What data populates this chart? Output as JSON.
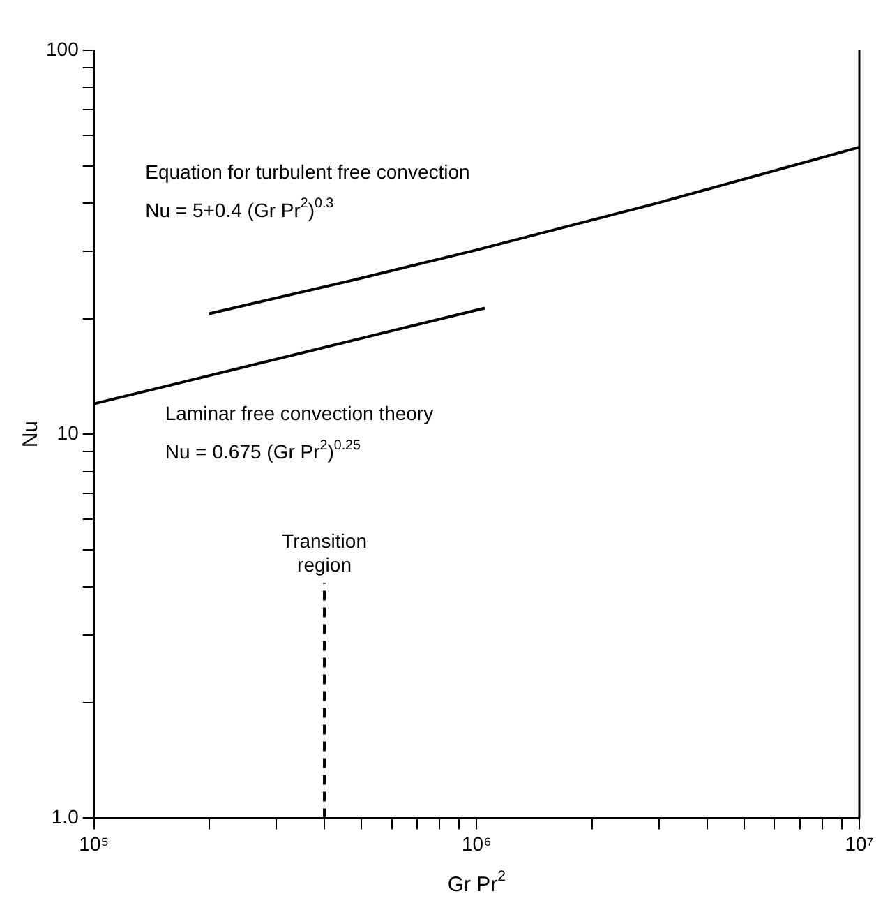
{
  "chart_data": {
    "type": "line",
    "xlabel": "Gr Pr$^{2}$",
    "ylabel": "Nu",
    "log": "xy",
    "marker": "none",
    "xlim": [
      100000,
      10000000
    ],
    "ylim": [
      1,
      100
    ],
    "xticks": [
      {
        "value": 100000,
        "label": "10⁵"
      },
      {
        "value": 200000,
        "label": null
      },
      {
        "value": 300000,
        "label": null
      },
      {
        "value": 400000,
        "label": null
      },
      {
        "value": 500000,
        "label": null
      },
      {
        "value": 600000,
        "label": null
      },
      {
        "value": 700000,
        "label": null
      },
      {
        "value": 800000,
        "label": null
      },
      {
        "value": 900000,
        "label": null
      },
      {
        "value": 1000000,
        "label": "10⁶"
      },
      {
        "value": 2000000,
        "label": null
      },
      {
        "value": 3000000,
        "label": null
      },
      {
        "value": 4000000,
        "label": null
      },
      {
        "value": 5000000,
        "label": null
      },
      {
        "value": 6000000,
        "label": null
      },
      {
        "value": 7000000,
        "label": null
      },
      {
        "value": 8000000,
        "label": null
      },
      {
        "value": 9000000,
        "label": null
      },
      {
        "value": 10000000,
        "label": "10⁷"
      }
    ],
    "yticks": [
      {
        "value": 1,
        "label": "1.0"
      },
      {
        "value": 2,
        "label": null
      },
      {
        "value": 3,
        "label": null
      },
      {
        "value": 4,
        "label": null
      },
      {
        "value": 5,
        "label": null
      },
      {
        "value": 6,
        "label": null
      },
      {
        "value": 7,
        "label": null
      },
      {
        "value": 8,
        "label": null
      },
      {
        "value": 9,
        "label": null
      },
      10,
      {
        "value": 20,
        "label": null
      },
      {
        "value": 30,
        "label": null
      },
      {
        "value": 40,
        "label": null
      },
      {
        "value": 50,
        "label": null
      },
      {
        "value": 60,
        "label": null
      },
      {
        "value": 70,
        "label": null
      },
      {
        "value": 80,
        "label": null
      },
      {
        "value": 90,
        "label": null
      },
      100
    ],
    "series": [
      {
        "color": "#000000",
        "x": [
          200000,
          500000,
          1000000,
          3000000,
          10000000
        ],
        "values": [
          20.6,
          25.5,
          30.2,
          40.1,
          55.9
        ]
      },
      {
        "color": "#000000",
        "x": [
          100000,
          1050000
        ],
        "values": [
          12,
          21.3
        ]
      },
      {
        "color": "#000000",
        "line_style": "dashed",
        "x": [
          400000,
          400000
        ],
        "values": [
          1,
          4.1
        ]
      }
    ],
    "annotations": [
      "Equation for turbulent free convection",
      "Nu = 5+0.4 (Gr Pr$^{2}$)$^{0.3}$",
      "Laminar free convection theory",
      "Nu = 0.675 (Gr Pr$^{2}$)$^{0.25}$",
      {
        "text": "Transition region",
        "x": 400000,
        "y": 4.1
      }
    ]
  }
}
